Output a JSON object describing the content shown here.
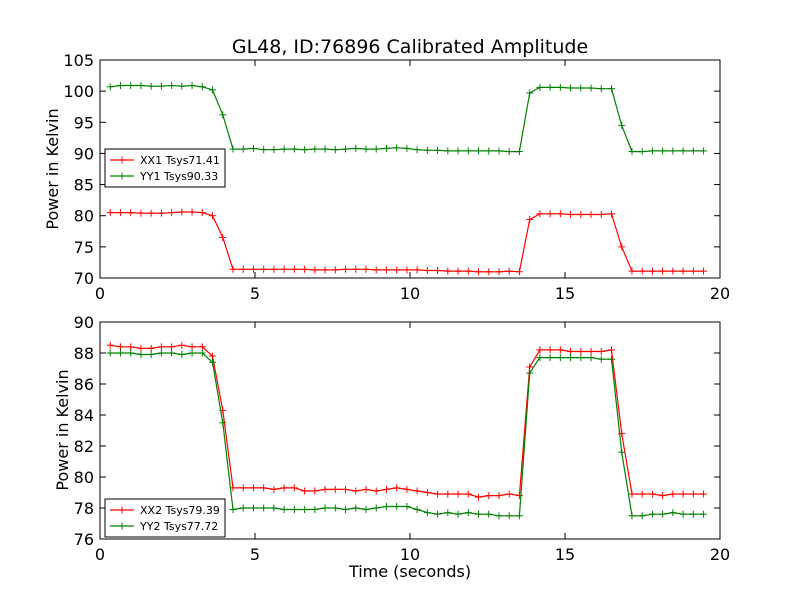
{
  "chart_data": {
    "title": "GL48, ID:76896 Calibrated Amplitude",
    "xlabel": "Time (seconds)",
    "panels": [
      {
        "type": "line",
        "ylabel": "Power in Kelvin",
        "xlim": [
          0,
          20
        ],
        "ylim": [
          70,
          105
        ],
        "xticks": [
          "0",
          "5",
          "10",
          "15",
          "20"
        ],
        "yticks": [
          "70",
          "75",
          "80",
          "85",
          "90",
          "95",
          "100",
          "105"
        ],
        "legend_position": "left-middle",
        "series": [
          {
            "name": "XX1 Tsys71.41",
            "color": "#ff0000",
            "x": [
              0.33,
              0.66,
              0.99,
              1.32,
              1.65,
              1.98,
              2.31,
              2.64,
              2.97,
              3.3,
              3.63,
              3.96,
              4.29,
              4.62,
              4.95,
              5.28,
              5.61,
              5.94,
              6.27,
              6.6,
              6.93,
              7.26,
              7.59,
              7.92,
              8.25,
              8.58,
              8.91,
              9.24,
              9.57,
              9.9,
              10.23,
              10.56,
              10.89,
              11.22,
              11.55,
              11.88,
              12.21,
              12.54,
              12.87,
              13.2,
              13.53,
              13.86,
              14.19,
              14.52,
              14.85,
              15.18,
              15.51,
              15.84,
              16.17,
              16.5,
              16.83,
              17.16,
              17.49,
              17.82,
              18.15,
              18.48,
              18.81,
              19.14,
              19.47
            ],
            "y": [
              80.5,
              80.5,
              80.5,
              80.4,
              80.4,
              80.4,
              80.5,
              80.6,
              80.6,
              80.5,
              80.0,
              76.5,
              71.4,
              71.4,
              71.4,
              71.4,
              71.4,
              71.4,
              71.4,
              71.4,
              71.3,
              71.3,
              71.3,
              71.4,
              71.4,
              71.4,
              71.3,
              71.3,
              71.3,
              71.3,
              71.3,
              71.2,
              71.2,
              71.1,
              71.1,
              71.1,
              71.0,
              71.0,
              71.0,
              71.1,
              71.0,
              79.4,
              80.3,
              80.3,
              80.3,
              80.2,
              80.2,
              80.2,
              80.2,
              80.3,
              75.0,
              71.1,
              71.1,
              71.1,
              71.1,
              71.1,
              71.1,
              71.1,
              71.1
            ]
          },
          {
            "name": "YY1 Tsys90.33",
            "color": "#008000",
            "x": [
              0.33,
              0.66,
              0.99,
              1.32,
              1.65,
              1.98,
              2.31,
              2.64,
              2.97,
              3.3,
              3.63,
              3.96,
              4.29,
              4.62,
              4.95,
              5.28,
              5.61,
              5.94,
              6.27,
              6.6,
              6.93,
              7.26,
              7.59,
              7.92,
              8.25,
              8.58,
              8.91,
              9.24,
              9.57,
              9.9,
              10.23,
              10.56,
              10.89,
              11.22,
              11.55,
              11.88,
              12.21,
              12.54,
              12.87,
              13.2,
              13.53,
              13.86,
              14.19,
              14.52,
              14.85,
              15.18,
              15.51,
              15.84,
              16.17,
              16.5,
              16.83,
              17.16,
              17.49,
              17.82,
              18.15,
              18.48,
              18.81,
              19.14,
              19.47
            ],
            "y": [
              100.7,
              100.9,
              100.9,
              100.9,
              100.8,
              100.8,
              100.9,
              100.8,
              100.9,
              100.7,
              100.2,
              96.2,
              90.7,
              90.7,
              90.8,
              90.6,
              90.6,
              90.7,
              90.7,
              90.6,
              90.7,
              90.7,
              90.6,
              90.7,
              90.8,
              90.7,
              90.7,
              90.8,
              90.9,
              90.8,
              90.6,
              90.5,
              90.5,
              90.4,
              90.4,
              90.4,
              90.4,
              90.4,
              90.4,
              90.3,
              90.3,
              99.7,
              100.6,
              100.6,
              100.6,
              100.5,
              100.5,
              100.5,
              100.4,
              100.4,
              94.5,
              90.3,
              90.3,
              90.4,
              90.4,
              90.4,
              90.4,
              90.4,
              90.4
            ]
          }
        ]
      },
      {
        "type": "line",
        "ylabel": "Power in Kelvin",
        "xlim": [
          0,
          20
        ],
        "ylim": [
          76,
          90
        ],
        "xticks": [
          "0",
          "5",
          "10",
          "15",
          "20"
        ],
        "yticks": [
          "76",
          "78",
          "80",
          "82",
          "84",
          "86",
          "88",
          "90"
        ],
        "legend_position": "bottom-left",
        "series": [
          {
            "name": "XX2 Tsys79.39",
            "color": "#ff0000",
            "x": [
              0.33,
              0.66,
              0.99,
              1.32,
              1.65,
              1.98,
              2.31,
              2.64,
              2.97,
              3.3,
              3.63,
              3.96,
              4.29,
              4.62,
              4.95,
              5.28,
              5.61,
              5.94,
              6.27,
              6.6,
              6.93,
              7.26,
              7.59,
              7.92,
              8.25,
              8.58,
              8.91,
              9.24,
              9.57,
              9.9,
              10.23,
              10.56,
              10.89,
              11.22,
              11.55,
              11.88,
              12.21,
              12.54,
              12.87,
              13.2,
              13.53,
              13.86,
              14.19,
              14.52,
              14.85,
              15.18,
              15.51,
              15.84,
              16.17,
              16.5,
              16.83,
              17.16,
              17.49,
              17.82,
              18.15,
              18.48,
              18.81,
              19.14,
              19.47
            ],
            "y": [
              88.5,
              88.4,
              88.4,
              88.3,
              88.3,
              88.4,
              88.4,
              88.5,
              88.4,
              88.4,
              87.8,
              84.3,
              79.3,
              79.3,
              79.3,
              79.3,
              79.2,
              79.3,
              79.3,
              79.1,
              79.1,
              79.2,
              79.2,
              79.2,
              79.1,
              79.2,
              79.1,
              79.2,
              79.3,
              79.2,
              79.1,
              79.0,
              78.9,
              78.9,
              78.9,
              78.9,
              78.7,
              78.8,
              78.8,
              78.9,
              78.8,
              87.1,
              88.2,
              88.2,
              88.2,
              88.1,
              88.1,
              88.1,
              88.1,
              88.2,
              82.8,
              78.9,
              78.9,
              78.9,
              78.8,
              78.9,
              78.9,
              78.9,
              78.9
            ]
          },
          {
            "name": "YY2 Tsys77.72",
            "color": "#008000",
            "x": [
              0.33,
              0.66,
              0.99,
              1.32,
              1.65,
              1.98,
              2.31,
              2.64,
              2.97,
              3.3,
              3.63,
              3.96,
              4.29,
              4.62,
              4.95,
              5.28,
              5.61,
              5.94,
              6.27,
              6.6,
              6.93,
              7.26,
              7.59,
              7.92,
              8.25,
              8.58,
              8.91,
              9.24,
              9.57,
              9.9,
              10.23,
              10.56,
              10.89,
              11.22,
              11.55,
              11.88,
              12.21,
              12.54,
              12.87,
              13.2,
              13.53,
              13.86,
              14.19,
              14.52,
              14.85,
              15.18,
              15.51,
              15.84,
              16.17,
              16.5,
              16.83,
              17.16,
              17.49,
              17.82,
              18.15,
              18.48,
              18.81,
              19.14,
              19.47
            ],
            "y": [
              88.0,
              88.0,
              88.0,
              87.9,
              87.9,
              88.0,
              88.0,
              87.9,
              88.0,
              88.0,
              87.4,
              83.5,
              77.9,
              78.0,
              78.0,
              78.0,
              78.0,
              77.9,
              77.9,
              77.9,
              77.9,
              78.0,
              78.0,
              77.9,
              78.0,
              77.9,
              78.0,
              78.1,
              78.1,
              78.1,
              77.9,
              77.7,
              77.6,
              77.7,
              77.6,
              77.7,
              77.6,
              77.6,
              77.5,
              77.5,
              77.5,
              86.7,
              87.7,
              87.7,
              87.7,
              87.7,
              87.7,
              87.7,
              87.6,
              87.6,
              81.6,
              77.5,
              77.5,
              77.6,
              77.6,
              77.7,
              77.6,
              77.6,
              77.6
            ]
          }
        ]
      }
    ]
  }
}
